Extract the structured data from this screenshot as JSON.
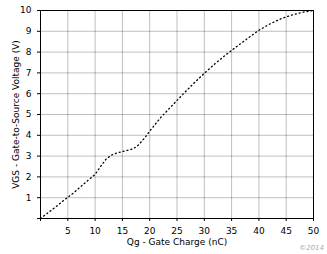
{
  "chart_data": {
    "type": "line",
    "xlabel": "Qg - Gate Charge (nC)",
    "ylabel": "VGS - Gate-to-Source Voltage (V)",
    "x": [
      0,
      1,
      2,
      3,
      4,
      5,
      6,
      7,
      8,
      9,
      10,
      11,
      12,
      13,
      14,
      15,
      16,
      17,
      18,
      19,
      20,
      22,
      24,
      26,
      28,
      30,
      32,
      34,
      36,
      38,
      40,
      42,
      44,
      46,
      48,
      50
    ],
    "values": [
      0,
      0.2,
      0.4,
      0.6,
      0.82,
      1.02,
      1.22,
      1.45,
      1.68,
      1.9,
      2.12,
      2.5,
      2.85,
      3.05,
      3.15,
      3.22,
      3.28,
      3.35,
      3.55,
      3.85,
      4.2,
      4.85,
      5.4,
      5.95,
      6.48,
      6.98,
      7.45,
      7.88,
      8.28,
      8.67,
      9.05,
      9.35,
      9.6,
      9.78,
      9.92,
      10.0
    ],
    "xlim": [
      0,
      50
    ],
    "ylim": [
      0,
      10
    ],
    "xticks": [
      {
        "value": 0,
        "label": ""
      },
      5,
      10,
      15,
      20,
      25,
      30,
      35,
      40,
      45,
      50
    ],
    "yticks": [
      {
        "value": 0,
        "label": ""
      },
      1,
      2,
      3,
      4,
      5,
      6,
      7,
      8,
      9,
      10
    ],
    "color": "#000000",
    "line_style": "dotted",
    "grid": true,
    "annotations": [
      "©2014"
    ]
  }
}
